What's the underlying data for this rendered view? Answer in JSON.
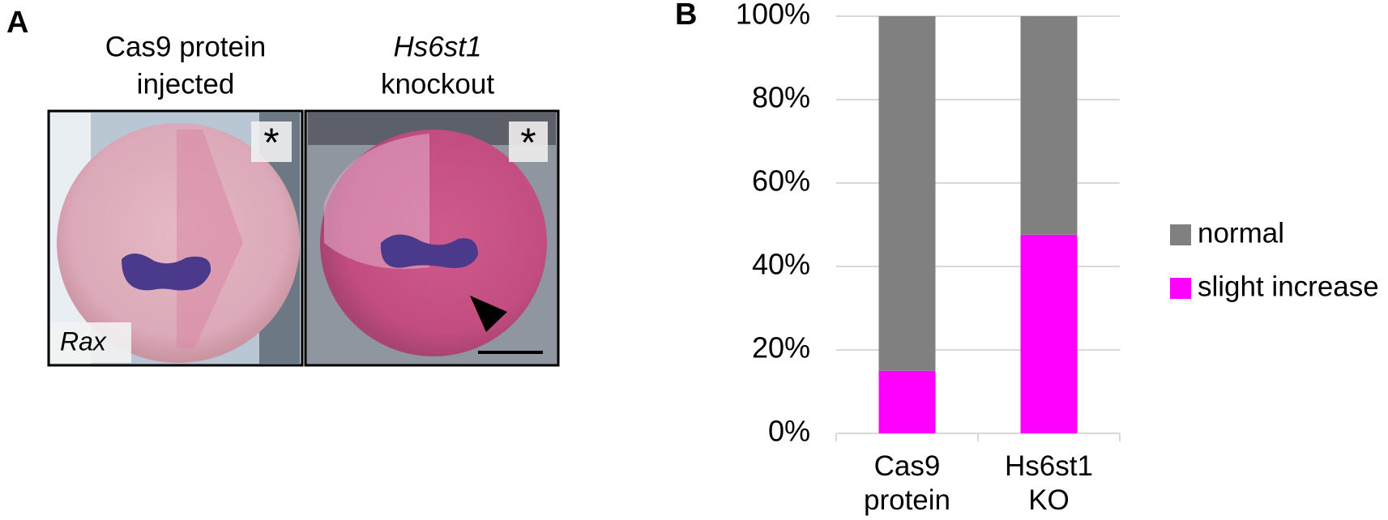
{
  "panel_a": {
    "label": "A",
    "left_title": [
      "Cas9 protein",
      "injected"
    ],
    "right_title": [
      "Hs6st1",
      "knockout"
    ],
    "stain": "Rax",
    "marker": "*"
  },
  "panel_b_label": "B",
  "chart_data": {
    "type": "stacked_bar",
    "categories": [
      "Cas9 protein",
      "Hs6st1 KO"
    ],
    "series": [
      {
        "name": "slight increase",
        "color": "#ff00ff",
        "values": [
          15,
          47.6
        ]
      },
      {
        "name": "normal",
        "color": "#808080",
        "values": [
          85,
          52.4
        ]
      }
    ],
    "ylim": [
      0,
      100
    ],
    "yticks": [
      {
        "value": 0,
        "label": "0%"
      },
      {
        "value": 20,
        "label": "20%"
      },
      {
        "value": 40,
        "label": "40%"
      },
      {
        "value": 60,
        "label": "60%"
      },
      {
        "value": 80,
        "label": "80%"
      },
      {
        "value": 100,
        "label": "100%"
      }
    ],
    "grid": true,
    "legend": "right"
  }
}
